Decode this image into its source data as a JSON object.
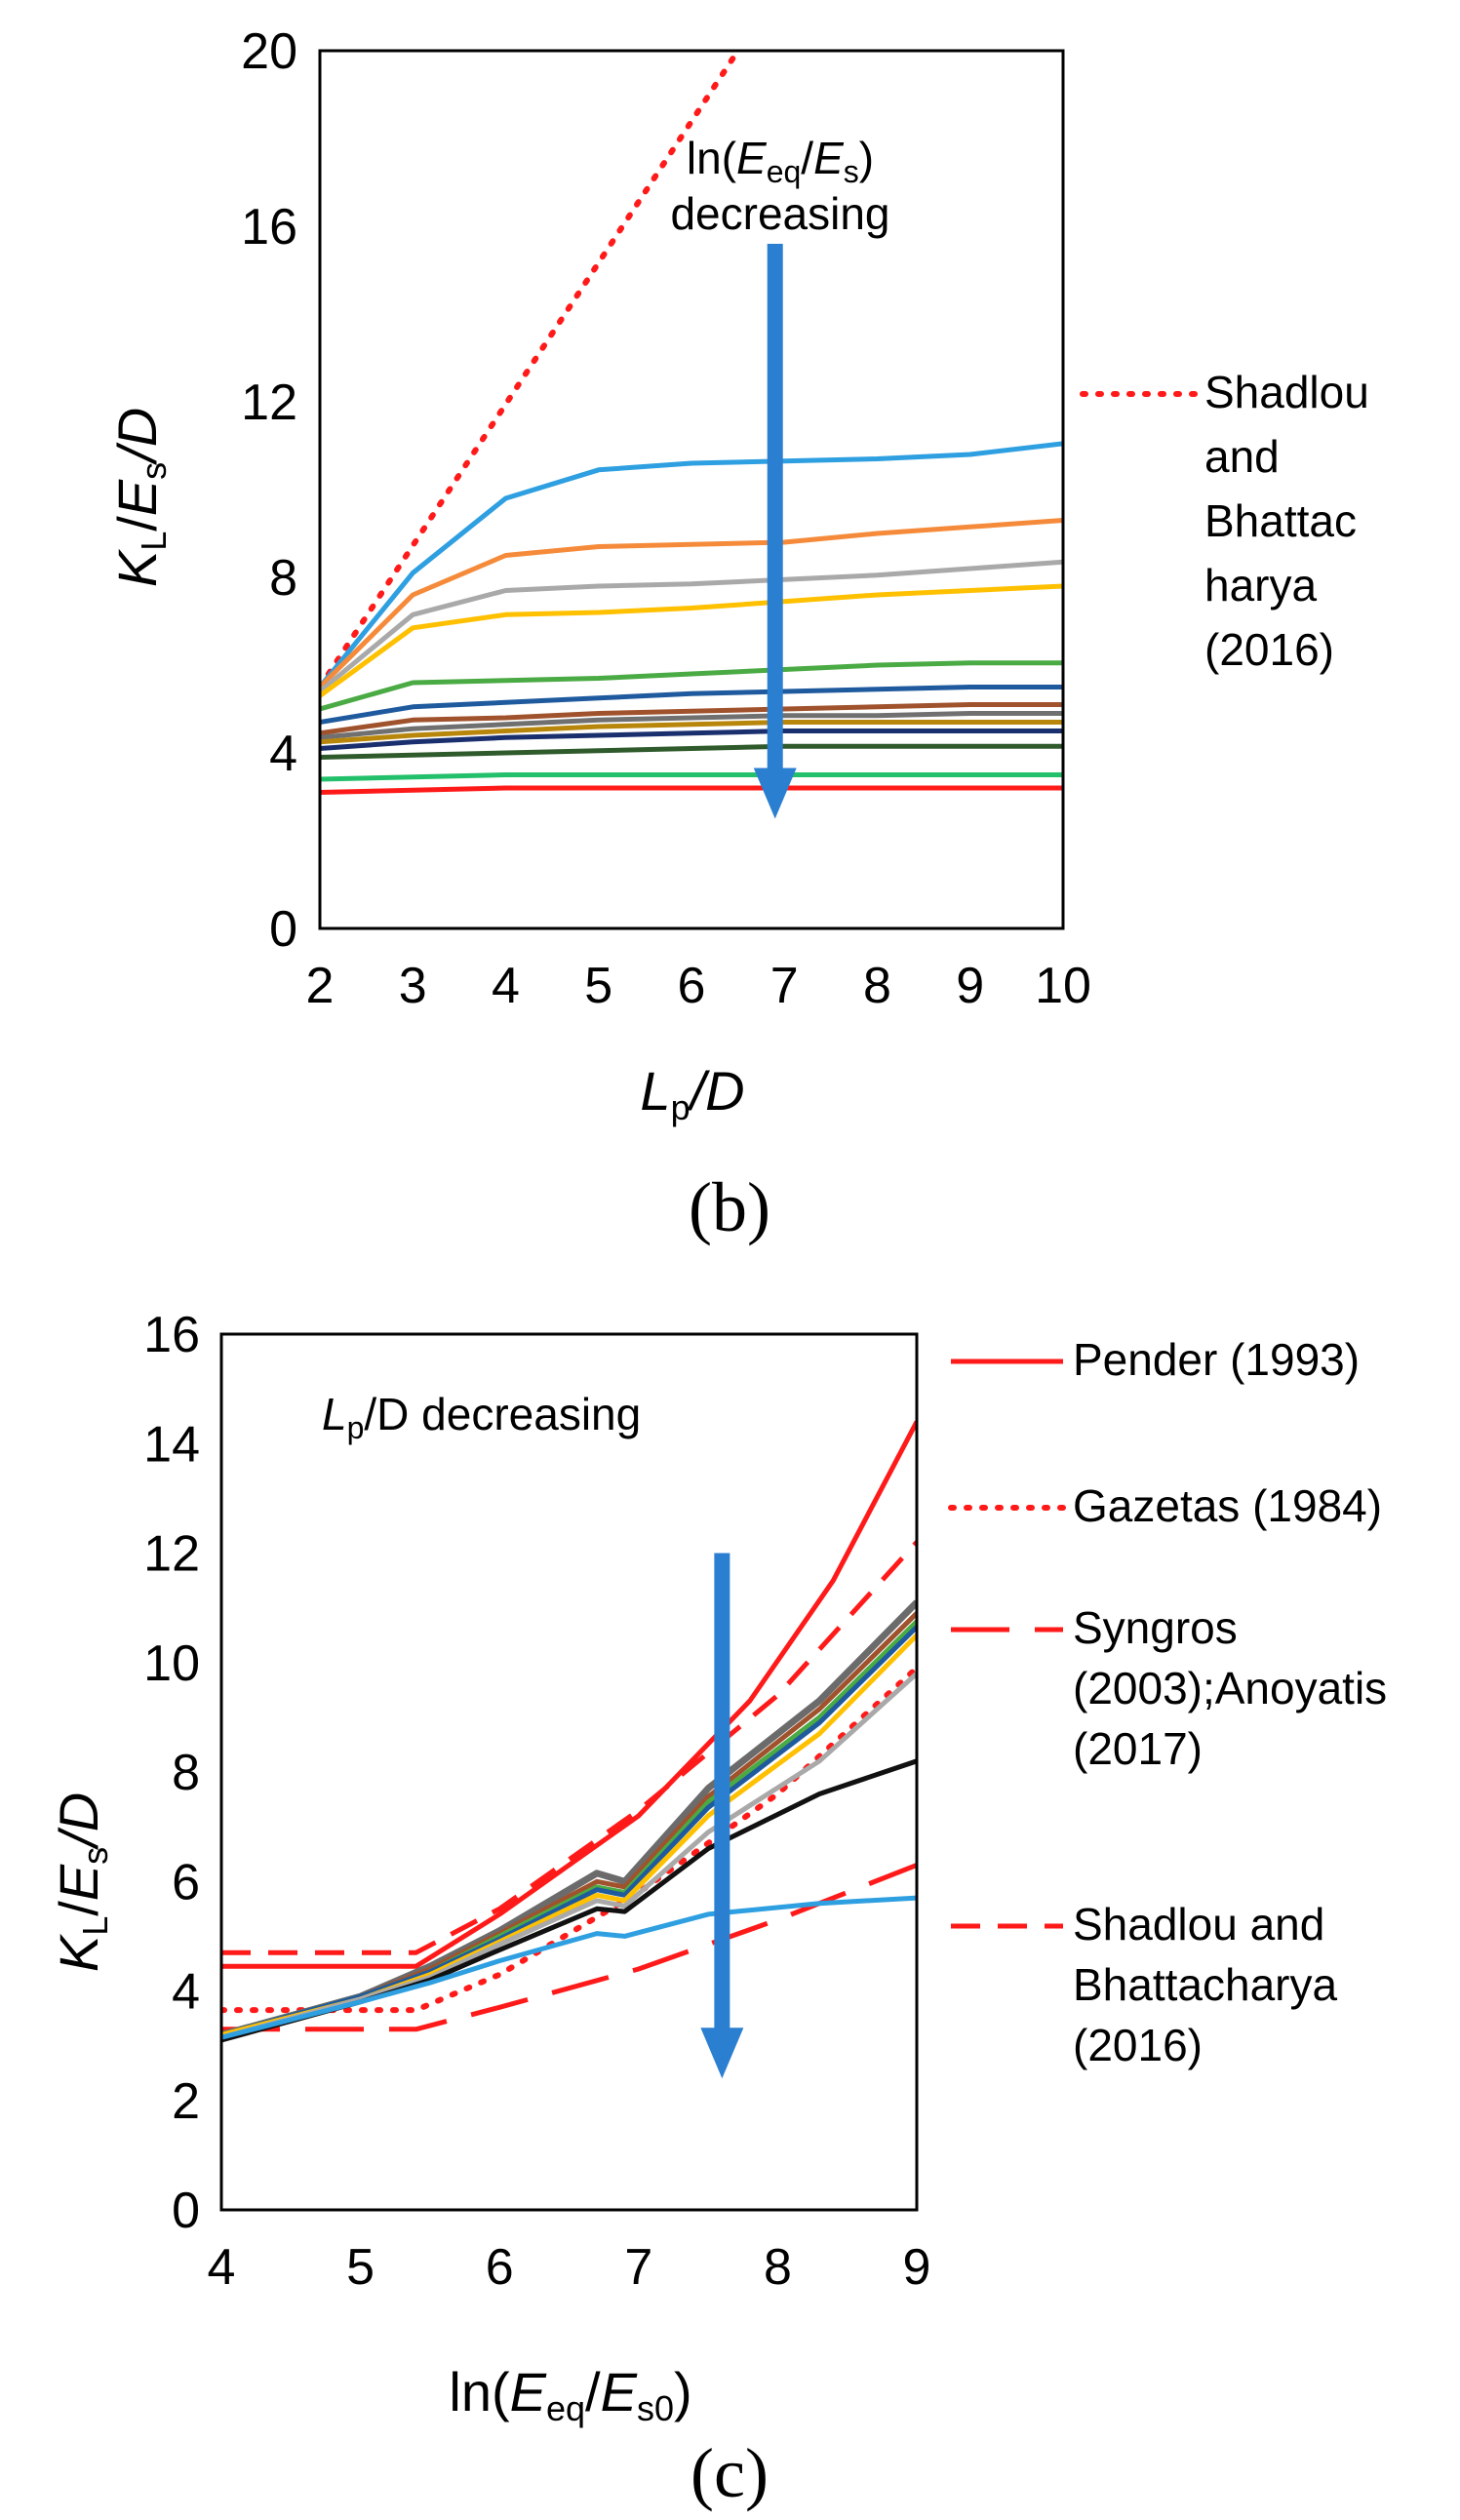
{
  "chart_data": [
    {
      "type": "line",
      "panel_label": "(b)",
      "xlabel_main": "L",
      "xlabel_sub": "p",
      "xlabel_rest": "/D",
      "ylabel": "KL/Es/D",
      "ylabel_parts": {
        "k": "K",
        "l": "L",
        "slash1": "/",
        "e": "E",
        "s": "s",
        "rest": "/D"
      },
      "xlim": [
        2,
        10
      ],
      "ylim": [
        0,
        20
      ],
      "xticks": [
        2,
        3,
        4,
        5,
        6,
        7,
        8,
        9,
        10
      ],
      "yticks": [
        0,
        4,
        8,
        12,
        16,
        20
      ],
      "annotation": {
        "line1_prefix": "ln(",
        "line1_e": "E",
        "line1_sub1": "eq",
        "line1_slash": "/",
        "line1_e2": "E",
        "line1_sub2": "s",
        "line1_suffix": ")",
        "line2": "decreasing",
        "arrow_x": 6.9,
        "arrow_from": 15.6,
        "arrow_to": 2.5,
        "arrow_color": "#2b7fd1"
      },
      "legend": [
        {
          "label_lines": [
            "Shadlou",
            "and",
            "Bhattac",
            "harya",
            "(2016)"
          ],
          "color": "#ff1a1a",
          "style": "dotted"
        }
      ],
      "x": [
        2,
        3,
        4,
        5,
        6,
        7,
        8,
        9,
        10
      ],
      "series": [
        {
          "name": "Shadlou and Bhattacharya (2016)",
          "color": "#ff1a1a",
          "style": "dotted",
          "x": [
            2,
            6.5
          ],
          "values": [
            5.5,
            20
          ]
        },
        {
          "name": "s1",
          "color": "#2e9fe0",
          "values": [
            5.5,
            8.1,
            9.8,
            10.45,
            10.6,
            10.65,
            10.7,
            10.8,
            11.05
          ]
        },
        {
          "name": "s2",
          "color": "#f58b3a",
          "values": [
            5.5,
            7.6,
            8.5,
            8.7,
            8.75,
            8.8,
            9.0,
            9.15,
            9.3
          ]
        },
        {
          "name": "s3",
          "color": "#a9a9a9",
          "values": [
            5.4,
            7.15,
            7.7,
            7.8,
            7.85,
            7.95,
            8.05,
            8.2,
            8.35
          ]
        },
        {
          "name": "s4",
          "color": "#ffc000",
          "values": [
            5.3,
            6.85,
            7.15,
            7.2,
            7.3,
            7.45,
            7.6,
            7.7,
            7.8
          ]
        },
        {
          "name": "s5",
          "color": "#4aaa44",
          "values": [
            5.0,
            5.6,
            5.65,
            5.7,
            5.8,
            5.9,
            6.0,
            6.05,
            6.05
          ]
        },
        {
          "name": "s6",
          "color": "#1f5a9e",
          "values": [
            4.7,
            5.05,
            5.15,
            5.25,
            5.35,
            5.4,
            5.45,
            5.5,
            5.5
          ]
        },
        {
          "name": "s7",
          "color": "#a0522d",
          "values": [
            4.45,
            4.75,
            4.8,
            4.9,
            4.95,
            5.0,
            5.05,
            5.1,
            5.1
          ]
        },
        {
          "name": "s8",
          "color": "#707070",
          "values": [
            4.35,
            4.55,
            4.65,
            4.75,
            4.8,
            4.85,
            4.85,
            4.9,
            4.9
          ]
        },
        {
          "name": "s9",
          "color": "#b8860b",
          "values": [
            4.25,
            4.4,
            4.5,
            4.6,
            4.65,
            4.7,
            4.7,
            4.7,
            4.7
          ]
        },
        {
          "name": "s10",
          "color": "#1a2f6e",
          "values": [
            4.1,
            4.25,
            4.35,
            4.4,
            4.45,
            4.5,
            4.5,
            4.5,
            4.5
          ]
        },
        {
          "name": "s11",
          "color": "#2f5a2b",
          "values": [
            3.9,
            3.95,
            4.0,
            4.05,
            4.1,
            4.15,
            4.15,
            4.15,
            4.15
          ]
        },
        {
          "name": "s12",
          "color": "#22c06a",
          "values": [
            3.4,
            3.45,
            3.5,
            3.5,
            3.5,
            3.5,
            3.5,
            3.5,
            3.5
          ]
        },
        {
          "name": "s13",
          "color": "#ff1a1a",
          "values": [
            3.1,
            3.15,
            3.2,
            3.2,
            3.2,
            3.2,
            3.2,
            3.2,
            3.2
          ]
        }
      ]
    },
    {
      "type": "line",
      "panel_label": "(c)",
      "xlabel_prefix": "ln(",
      "xlabel_e": "E",
      "xlabel_sub1": "eq",
      "xlabel_slash": "/",
      "xlabel_e2": "E",
      "xlabel_sub2": "s0",
      "xlabel_suffix": ")",
      "ylabel": "KL/Es/D",
      "ylabel_parts": {
        "k": "K",
        "l": "L",
        "slash1": "/",
        "e": "E",
        "s": "s",
        "rest": "/D"
      },
      "xlim": [
        4,
        9
      ],
      "ylim": [
        0,
        16
      ],
      "xticks": [
        4,
        5,
        6,
        7,
        8,
        9
      ],
      "yticks": [
        0,
        2,
        4,
        6,
        8,
        10,
        12,
        14,
        16
      ],
      "annotation": {
        "l": "L",
        "sub": "p",
        "rest": "/D decreasing",
        "arrow_x": 7.6,
        "arrow_from": 12.0,
        "arrow_to": 2.4,
        "arrow_color": "#2b7fd1"
      },
      "legend": [
        {
          "label_lines": [
            "Pender (1993)"
          ],
          "color": "#ff1a1a",
          "style": "solid"
        },
        {
          "label_lines": [
            "Gazetas (1984)"
          ],
          "color": "#ff1a1a",
          "style": "dotted"
        },
        {
          "label_lines": [
            "Syngros",
            "(2003);Anoyatis",
            "(2017)"
          ],
          "color": "#ff1a1a",
          "style": "longdash"
        },
        {
          "label_lines": [
            "Shadlou and",
            "Bhattacharya",
            "(2016)"
          ],
          "color": "#ff1a1a",
          "style": "dashed"
        }
      ],
      "series": [
        {
          "name": "Pender (1993)",
          "color": "#ff1a1a",
          "style": "solid",
          "x": [
            4,
            5.4,
            6.0,
            7.0,
            7.8,
            8.4,
            9.0
          ],
          "values": [
            4.45,
            4.45,
            5.4,
            7.2,
            9.3,
            11.5,
            14.4
          ]
        },
        {
          "name": "Gazetas (1984)",
          "color": "#ff1a1a",
          "style": "dotted",
          "x": [
            4,
            5.4,
            6.0,
            7.0,
            8.0,
            9.0
          ],
          "values": [
            3.65,
            3.65,
            4.3,
            5.8,
            7.6,
            9.9
          ]
        },
        {
          "name": "Syngros (2003);Anoyatis (2017)",
          "color": "#ff1a1a",
          "style": "longdash",
          "x": [
            4,
            5.4,
            6.0,
            7.0,
            8.0,
            9.0
          ],
          "values": [
            3.3,
            3.3,
            3.7,
            4.4,
            5.3,
            6.3
          ]
        },
        {
          "name": "Shadlou and Bhattacharya (2016)",
          "color": "#ff1a1a",
          "style": "dashed",
          "x": [
            4,
            5.4,
            6.0,
            7.0,
            8.0,
            9.0
          ],
          "values": [
            4.7,
            4.7,
            5.5,
            7.3,
            9.4,
            12.2
          ]
        },
        {
          "name": "p1",
          "color": "#6b6b6b",
          "width": 7,
          "x": [
            4,
            5.0,
            5.5,
            6.0,
            6.7,
            6.9,
            7.5,
            8.3,
            9.0
          ],
          "values": [
            3.2,
            3.9,
            4.45,
            5.1,
            6.15,
            6.0,
            7.7,
            9.3,
            11.1
          ]
        },
        {
          "name": "p2",
          "color": "#a0522d",
          "x": [
            4,
            5.0,
            5.5,
            6.0,
            6.7,
            6.9,
            7.5,
            8.3,
            9.0
          ],
          "values": [
            3.2,
            3.9,
            4.4,
            5.05,
            6.0,
            5.9,
            7.55,
            9.15,
            10.9
          ]
        },
        {
          "name": "p3",
          "color": "#4aaa44",
          "x": [
            4,
            5.0,
            5.5,
            6.0,
            6.7,
            6.9,
            7.5,
            8.3,
            9.0
          ],
          "values": [
            3.2,
            3.9,
            4.35,
            5.0,
            5.9,
            5.8,
            7.45,
            9.0,
            10.75
          ]
        },
        {
          "name": "p4",
          "color": "#1f5a9e",
          "x": [
            4,
            5.0,
            5.5,
            6.0,
            6.7,
            6.9,
            7.5,
            8.3,
            9.0
          ],
          "values": [
            3.2,
            3.9,
            4.35,
            4.95,
            5.85,
            5.75,
            7.35,
            8.9,
            10.65
          ]
        },
        {
          "name": "p5",
          "color": "#ffc000",
          "x": [
            4,
            5.0,
            5.5,
            6.0,
            6.7,
            6.9,
            7.5,
            8.3,
            9.0
          ],
          "values": [
            3.2,
            3.85,
            4.3,
            4.9,
            5.75,
            5.65,
            7.2,
            8.7,
            10.5
          ]
        },
        {
          "name": "p6",
          "color": "#a9a9a9",
          "x": [
            4,
            5.0,
            5.5,
            6.0,
            6.7,
            6.9,
            7.5,
            8.3,
            9.0
          ],
          "values": [
            3.15,
            3.85,
            4.25,
            4.85,
            5.65,
            5.55,
            6.9,
            8.2,
            9.8
          ]
        },
        {
          "name": "p7",
          "color": "#111111",
          "x": [
            4,
            5.0,
            5.5,
            6.0,
            6.7,
            6.9,
            7.5,
            8.3,
            9.0
          ],
          "values": [
            3.1,
            3.8,
            4.2,
            4.75,
            5.5,
            5.45,
            6.6,
            7.6,
            8.2
          ]
        },
        {
          "name": "p8",
          "color": "#2e9fe0",
          "x": [
            4,
            5.0,
            5.5,
            6.0,
            6.7,
            6.9,
            7.5,
            8.3,
            9.0
          ],
          "values": [
            3.15,
            3.8,
            4.15,
            4.55,
            5.05,
            5.0,
            5.4,
            5.6,
            5.7
          ]
        }
      ]
    }
  ]
}
